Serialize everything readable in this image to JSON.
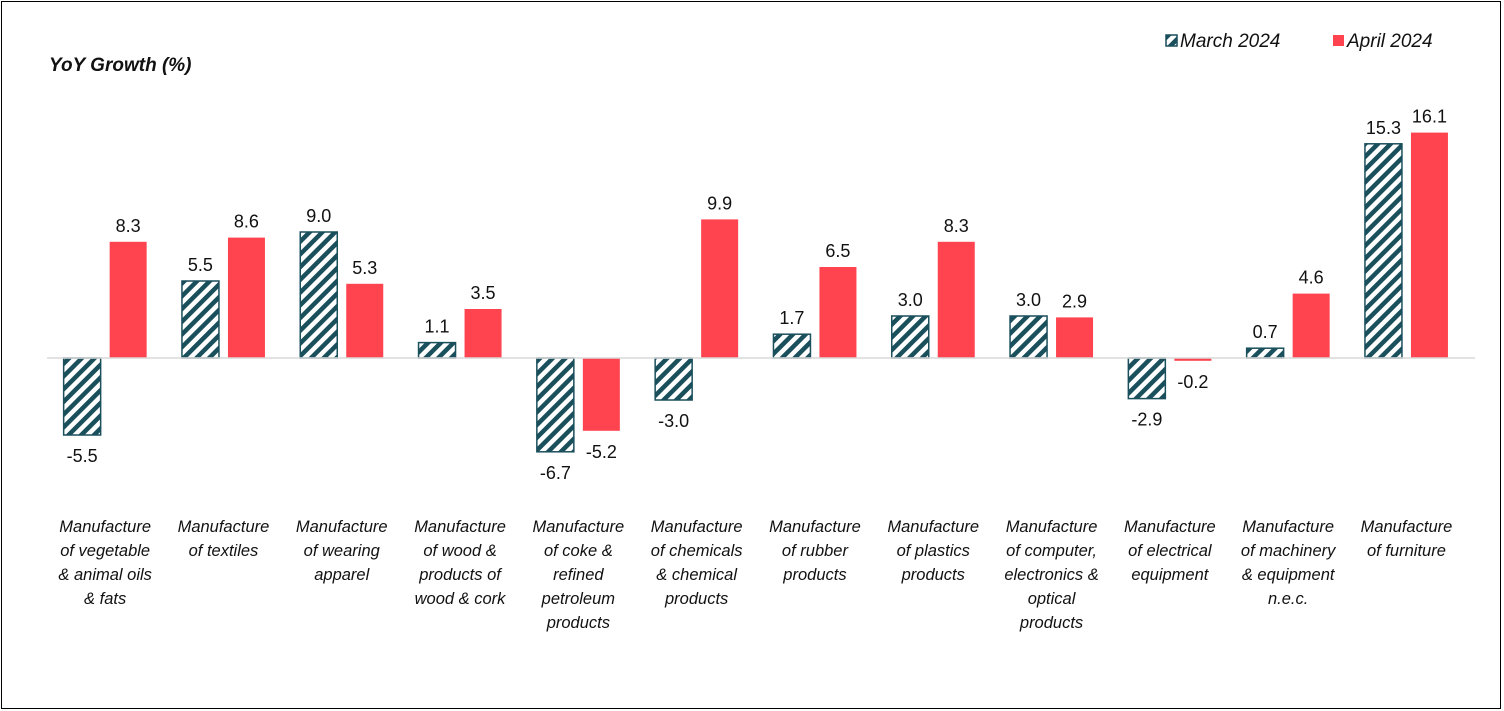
{
  "chart_data": {
    "type": "bar",
    "ylabel": "YoY Growth (%)",
    "categories": [
      [
        "Manufacture",
        "of vegetable",
        "& animal oils",
        "& fats"
      ],
      [
        "Manufacture",
        "of textiles"
      ],
      [
        "Manufacture",
        "of wearing",
        "apparel"
      ],
      [
        "Manufacture",
        "of wood &",
        "products of",
        "wood & cork"
      ],
      [
        "Manufacture",
        "of coke &",
        "refined",
        "petroleum",
        "products"
      ],
      [
        "Manufacture",
        "of chemicals",
        "& chemical",
        "products"
      ],
      [
        "Manufacture",
        "of rubber",
        "products"
      ],
      [
        "Manufacture",
        "of plastics",
        "products"
      ],
      [
        "Manufacture",
        "of computer,",
        "electronics &",
        "optical",
        "products"
      ],
      [
        "Manufacture",
        "of electrical",
        "equipment"
      ],
      [
        "Manufacture",
        "of machinery",
        "& equipment",
        "n.e.c."
      ],
      [
        "Manufacture",
        "of furniture"
      ]
    ],
    "series": [
      {
        "name": "March 2024",
        "style": "hatched",
        "color": "#1a4f5c",
        "values": [
          -5.5,
          5.5,
          9.0,
          1.1,
          -6.7,
          -3.0,
          1.7,
          3.0,
          3.0,
          -2.9,
          0.7,
          15.3
        ],
        "labels": [
          "-5.5",
          "5.5",
          "9.0",
          "1.1",
          "-6.7",
          "-3.0",
          "1.7",
          "3.0",
          "3.0",
          "-2.9",
          "0.7",
          "15.3"
        ]
      },
      {
        "name": "April 2024",
        "style": "solid",
        "color": "#ff4450",
        "values": [
          8.3,
          8.6,
          5.3,
          3.5,
          -5.2,
          9.9,
          6.5,
          8.3,
          2.9,
          -0.2,
          4.6,
          16.1
        ],
        "labels": [
          "8.3",
          "8.6",
          "5.3",
          "3.5",
          "-5.2",
          "9.9",
          "6.5",
          "8.3",
          "2.9",
          "-0.2",
          "4.6",
          "16.1"
        ]
      }
    ],
    "legend_position": "top-right",
    "grid": false
  }
}
